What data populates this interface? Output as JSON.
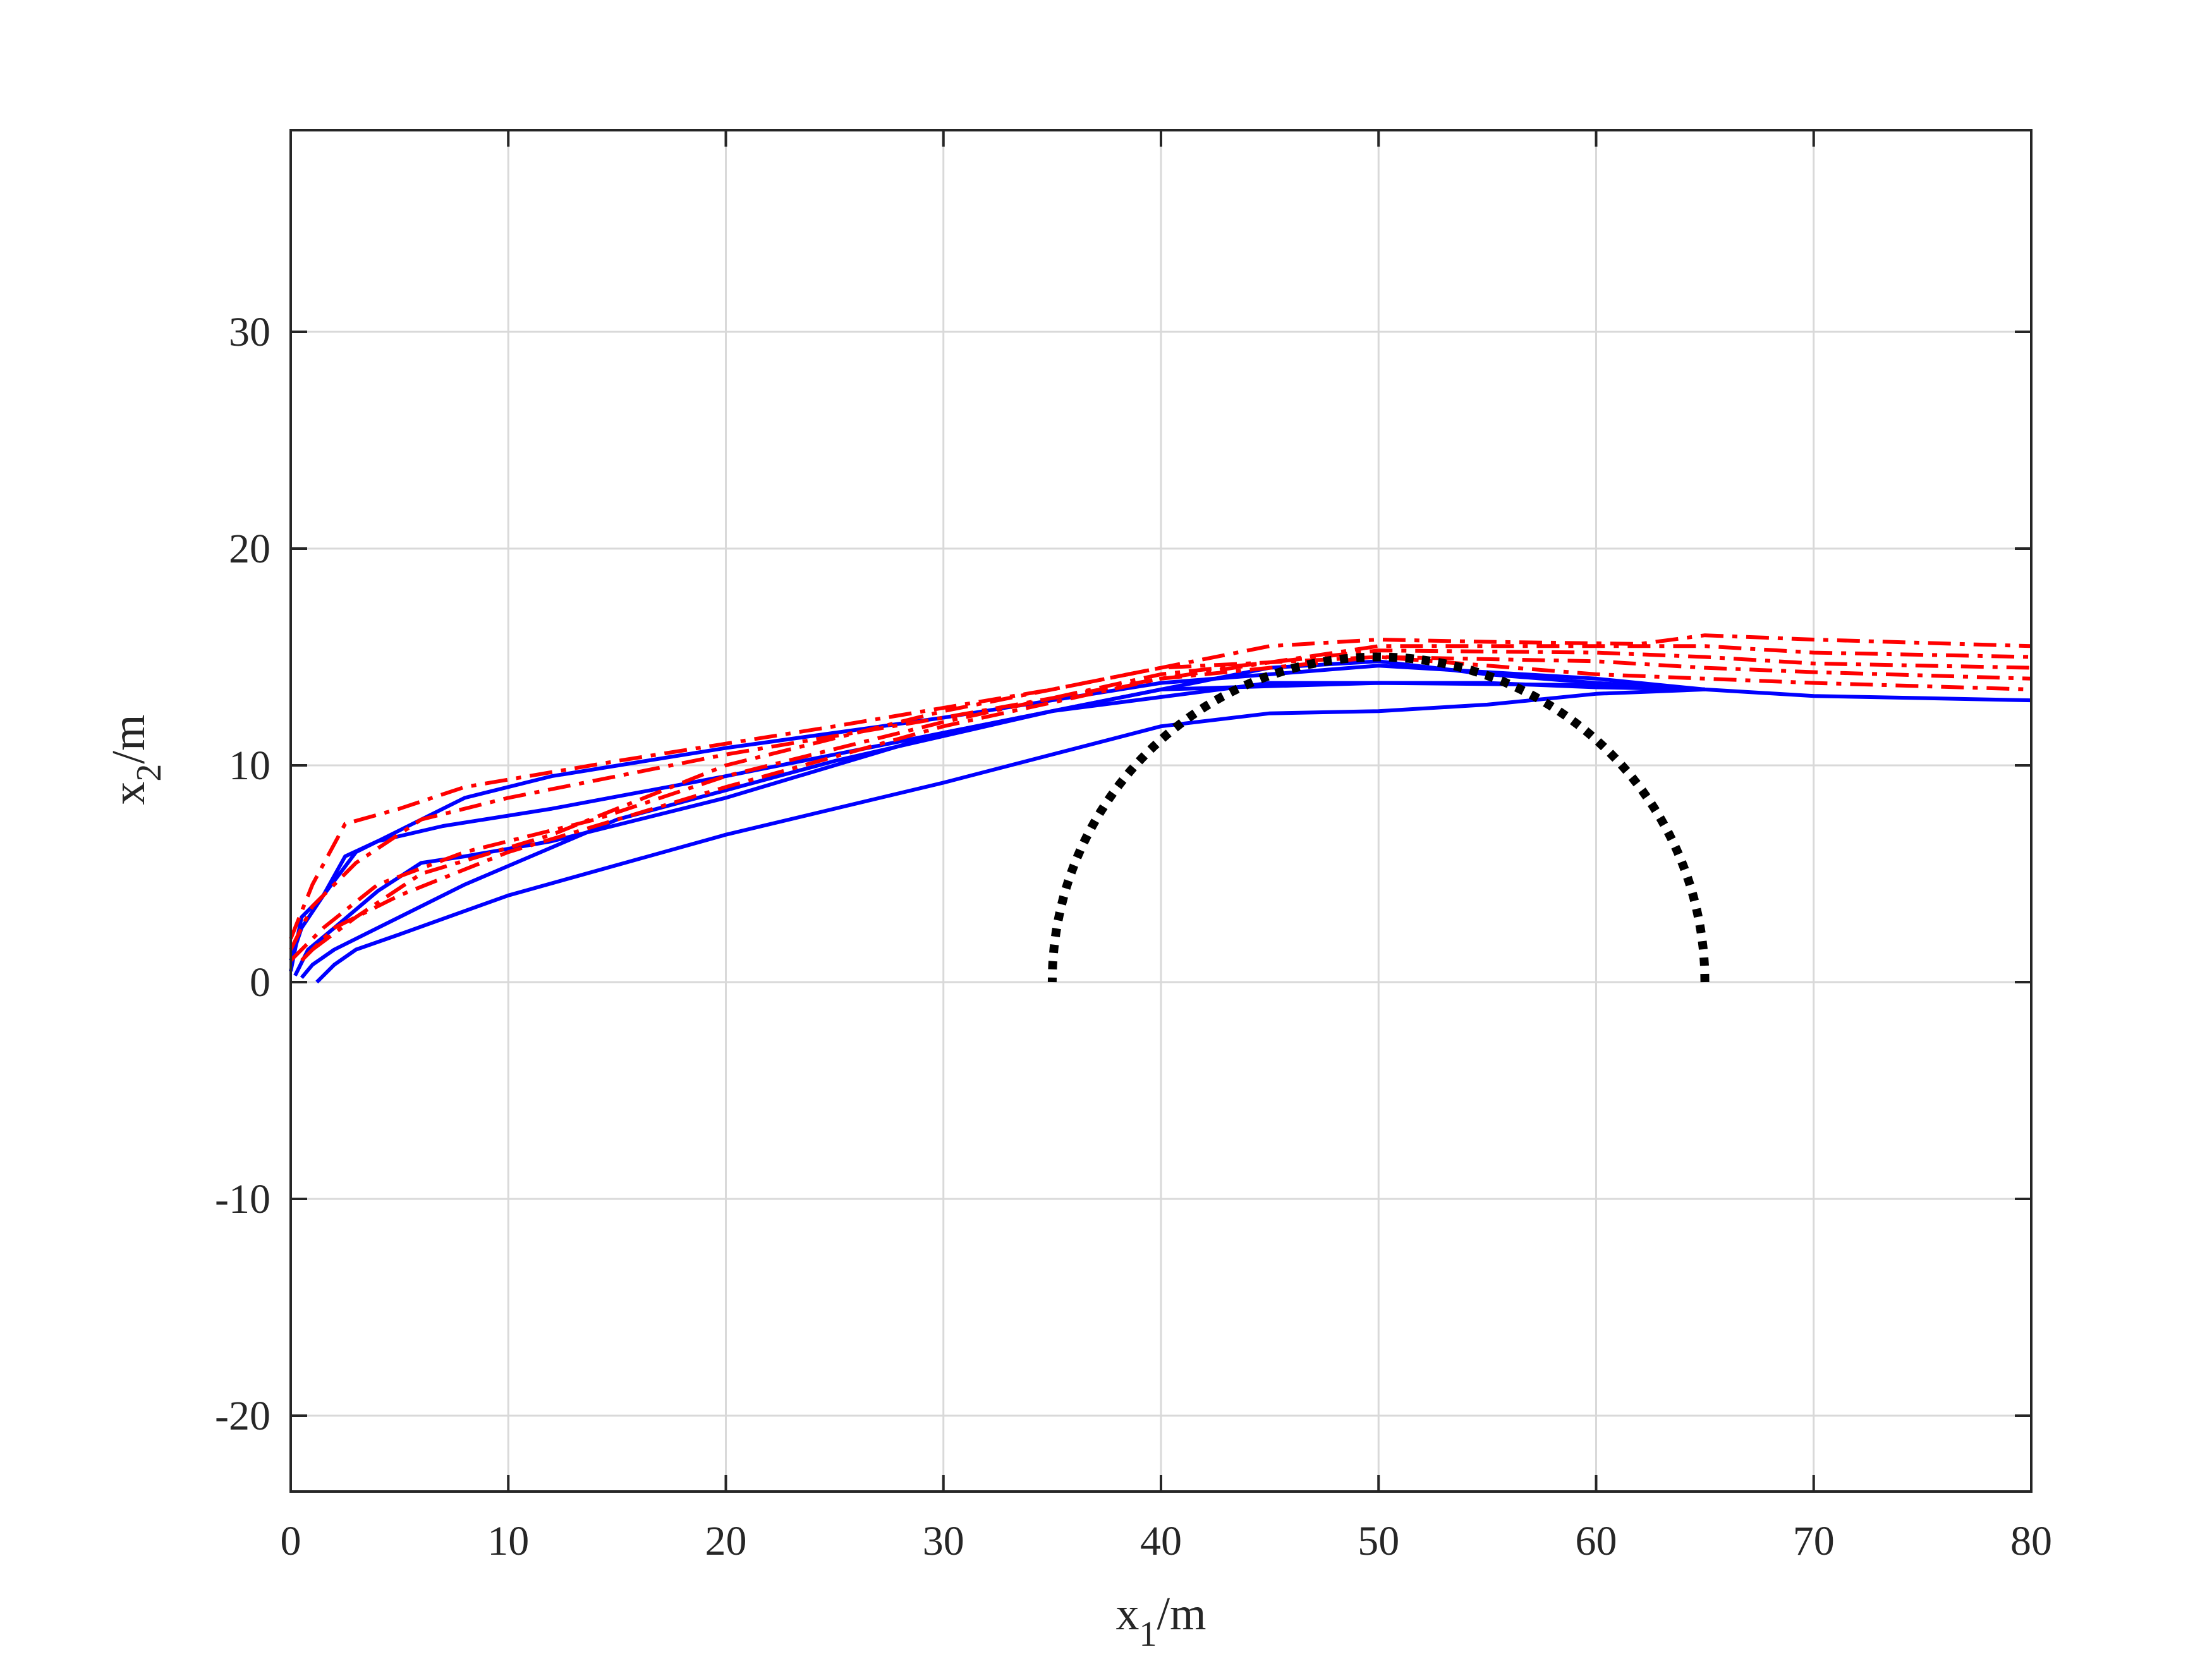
{
  "chart_data": {
    "type": "line",
    "title": "",
    "xlabel": {
      "base": "x",
      "sub": "1",
      "suffix": "/m"
    },
    "ylabel": {
      "base": "x",
      "sub": "2",
      "suffix": "/m"
    },
    "xlim": [
      0,
      80
    ],
    "ylim": [
      -23.5,
      39.3
    ],
    "xticks": [
      0,
      10,
      20,
      30,
      40,
      50,
      60,
      70,
      80
    ],
    "yticks": [
      -20,
      -10,
      0,
      10,
      20,
      30
    ],
    "grid": true,
    "legend": "none",
    "colors": {
      "solid": "#0000ff",
      "dashdot": "#ff0000",
      "obstacle": "#000000",
      "axis": "#262626",
      "grid": "#d9d9d9"
    },
    "obstacle": {
      "center": [
        50,
        0
      ],
      "radius": 15,
      "style": "dotted"
    },
    "series": [
      {
        "style": "solid",
        "x": [
          0.0,
          0.5,
          1.5,
          3,
          5,
          8,
          12,
          20,
          30,
          40,
          50,
          60,
          65,
          70,
          80
        ],
        "y": [
          0.5,
          3.0,
          4.0,
          6.0,
          7.0,
          8.5,
          9.5,
          10.8,
          12.2,
          13.8,
          14.6,
          14.0,
          13.5,
          13.2,
          13.0
        ]
      },
      {
        "style": "solid",
        "x": [
          0.0,
          0.5,
          1.5,
          2.5,
          4,
          7,
          12,
          20,
          30,
          40,
          45,
          50,
          55,
          60,
          65
        ],
        "y": [
          1.0,
          2.5,
          4.0,
          5.8,
          6.5,
          7.2,
          8.0,
          9.5,
          11.5,
          13.5,
          14.5,
          14.8,
          14.2,
          13.8,
          13.5
        ]
      },
      {
        "style": "solid",
        "x": [
          0.2,
          0.8,
          2,
          4,
          6,
          8,
          12,
          20,
          30,
          40,
          50,
          60,
          65
        ],
        "y": [
          0.3,
          1.5,
          2.5,
          4.2,
          5.5,
          5.8,
          6.5,
          8.5,
          11.5,
          13.5,
          13.8,
          13.7,
          13.5
        ]
      },
      {
        "style": "solid",
        "x": [
          0.5,
          1,
          2,
          4,
          8,
          15,
          25,
          35,
          45,
          55,
          60,
          65
        ],
        "y": [
          0.2,
          0.8,
          1.5,
          2.5,
          4.5,
          7.5,
          10.2,
          12.5,
          13.8,
          13.8,
          13.6,
          13.5
        ]
      },
      {
        "style": "solid",
        "x": [
          1.2,
          2,
          3,
          5,
          10,
          20,
          30,
          40,
          45,
          50,
          55,
          60,
          65
        ],
        "y": [
          0.0,
          0.8,
          1.5,
          2.2,
          4.0,
          6.8,
          9.2,
          11.8,
          12.4,
          12.5,
          12.8,
          13.3,
          13.5
        ]
      },
      {
        "style": "dashdot",
        "x": [
          0,
          1,
          2.5,
          5,
          8,
          15,
          25,
          35,
          45,
          50,
          55,
          62,
          65,
          70,
          80
        ],
        "y": [
          2.0,
          4.5,
          7.3,
          8.0,
          9.0,
          10.2,
          11.8,
          13.5,
          15.5,
          15.8,
          15.7,
          15.6,
          16.0,
          15.8,
          15.5
        ]
      },
      {
        "style": "dashdot",
        "x": [
          0,
          1,
          3,
          6,
          10,
          20,
          30,
          40,
          50,
          60,
          65,
          70,
          80
        ],
        "y": [
          1.5,
          3.5,
          5.5,
          7.5,
          8.5,
          10.5,
          12.2,
          14.0,
          15.5,
          15.5,
          15.5,
          15.2,
          15.0
        ]
      },
      {
        "style": "dashdot",
        "x": [
          0,
          1.5,
          4,
          8,
          14,
          20,
          30,
          40,
          50,
          60,
          65,
          70,
          80
        ],
        "y": [
          1.0,
          2.5,
          4.5,
          6.0,
          7.5,
          9.5,
          12.0,
          14.2,
          15.3,
          15.2,
          15.0,
          14.7,
          14.5
        ]
      },
      {
        "style": "dashdot",
        "x": [
          0.5,
          2,
          5,
          10,
          20,
          30,
          40,
          50,
          60,
          65,
          70,
          80
        ],
        "y": [
          1.0,
          2.5,
          4.0,
          6.0,
          9.0,
          11.8,
          14.0,
          15.0,
          14.8,
          14.5,
          14.3,
          14.0
        ]
      },
      {
        "style": "dashdot",
        "x": [
          1,
          3,
          6,
          12,
          20,
          30,
          40,
          50,
          60,
          65,
          70,
          80
        ],
        "y": [
          1.5,
          3.0,
          5.0,
          6.8,
          10.0,
          12.5,
          14.5,
          15.0,
          14.2,
          14.0,
          13.8,
          13.5
        ]
      }
    ]
  }
}
